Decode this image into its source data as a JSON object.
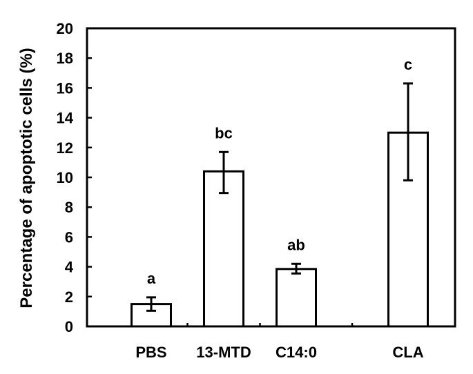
{
  "chart_data": {
    "type": "bar",
    "title": "",
    "xlabel": "",
    "ylabel": "Percentage of apoptotic cells (%)",
    "ylim": [
      0,
      20
    ],
    "yticks": [
      0,
      2,
      4,
      6,
      8,
      10,
      12,
      14,
      16,
      18,
      20
    ],
    "grid": false,
    "legend": "none",
    "bar_fill": "#ffffff",
    "bar_stroke": "#000000",
    "categories": [
      "PBS",
      "13-MTD",
      "C14:0",
      "CLA"
    ],
    "values": [
      1.5,
      10.4,
      3.85,
      13.0
    ],
    "error_upper": [
      0.45,
      1.3,
      0.35,
      3.3
    ],
    "error_lower": [
      0.45,
      1.45,
      0.3,
      3.2
    ],
    "significance_labels": [
      "a",
      "bc",
      "ab",
      "c"
    ]
  }
}
